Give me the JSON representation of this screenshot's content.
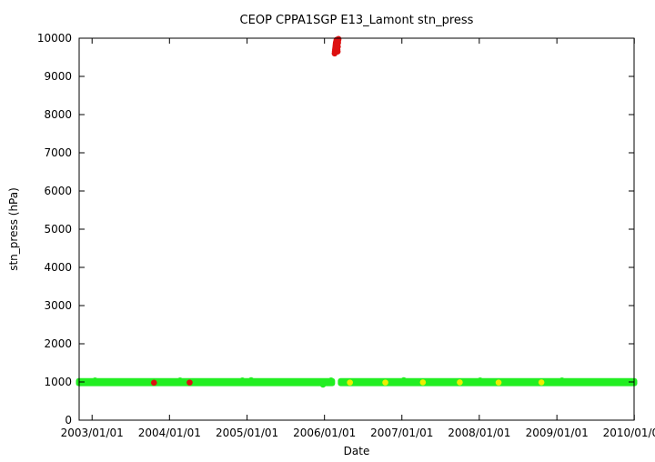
{
  "chart_data": {
    "type": "scatter",
    "title": "CEOP CPPA1SGP E13_Lamont  stn_press",
    "xlabel": "Date",
    "ylabel": "stn_press (hPa)",
    "xlim": [
      "2002/11/01",
      "2009/12/31"
    ],
    "ylim": [
      0,
      10000
    ],
    "x_ticks": [
      "2003/01/01",
      "2004/01/01",
      "2005/01/01",
      "2006/01/01",
      "2007/01/01",
      "2008/01/01",
      "2009/01/01",
      "2010/01/01"
    ],
    "y_ticks": [
      0,
      1000,
      2000,
      3000,
      4000,
      5000,
      6000,
      7000,
      8000,
      9000,
      10000
    ],
    "grid": false,
    "legend": "none",
    "colors": {
      "good": "#22ee22",
      "bad": "#dd1111",
      "questionable": "#eeee00"
    },
    "series": [
      {
        "color_key": "good",
        "segments": [
          {
            "start": "2002/11/01",
            "end": "2006/02/05",
            "min": 960,
            "max": 1030
          },
          {
            "start": "2006/03/20",
            "end": "2009/12/31",
            "min": 960,
            "max": 1030
          }
        ],
        "points": [
          {
            "x": "2003/01/15",
            "y": 1040
          },
          {
            "x": "2004/02/20",
            "y": 1040
          },
          {
            "x": "2004/12/10",
            "y": 1040
          },
          {
            "x": "2005/01/20",
            "y": 1045
          },
          {
            "x": "2005/12/25",
            "y": 930
          },
          {
            "x": "2006/02/01",
            "y": 1040
          },
          {
            "x": "2007/01/10",
            "y": 1045
          },
          {
            "x": "2008/01/05",
            "y": 1040
          },
          {
            "x": "2009/01/25",
            "y": 1040
          }
        ]
      },
      {
        "color_key": "bad",
        "points": [
          {
            "x": "2003/10/20",
            "y": 980
          },
          {
            "x": "2004/04/05",
            "y": 985
          },
          {
            "x": "2006/02/18",
            "y": 9600
          },
          {
            "x": "2006/02/19",
            "y": 9650
          },
          {
            "x": "2006/02/20",
            "y": 9700
          },
          {
            "x": "2006/02/21",
            "y": 9750
          },
          {
            "x": "2006/02/22",
            "y": 9800
          },
          {
            "x": "2006/02/23",
            "y": 9850
          },
          {
            "x": "2006/02/24",
            "y": 9880
          },
          {
            "x": "2006/02/25",
            "y": 9900
          },
          {
            "x": "2006/02/26",
            "y": 9920
          },
          {
            "x": "2006/02/27",
            "y": 9950
          },
          {
            "x": "2006/02/28",
            "y": 9960
          },
          {
            "x": "2006/03/01",
            "y": 9900
          },
          {
            "x": "2006/03/02",
            "y": 9820
          },
          {
            "x": "2006/03/03",
            "y": 9700
          },
          {
            "x": "2006/03/04",
            "y": 9650
          },
          {
            "x": "2006/03/05",
            "y": 9780
          },
          {
            "x": "2006/03/06",
            "y": 9880
          },
          {
            "x": "2006/03/07",
            "y": 9950
          },
          {
            "x": "2006/03/08",
            "y": 9980
          }
        ]
      },
      {
        "color_key": "questionable",
        "points": [
          {
            "x": "2006/05/01",
            "y": 985
          },
          {
            "x": "2006/10/15",
            "y": 985
          },
          {
            "x": "2007/04/10",
            "y": 990
          },
          {
            "x": "2007/10/01",
            "y": 990
          },
          {
            "x": "2008/04/01",
            "y": 985
          },
          {
            "x": "2008/10/20",
            "y": 990
          }
        ]
      }
    ]
  }
}
